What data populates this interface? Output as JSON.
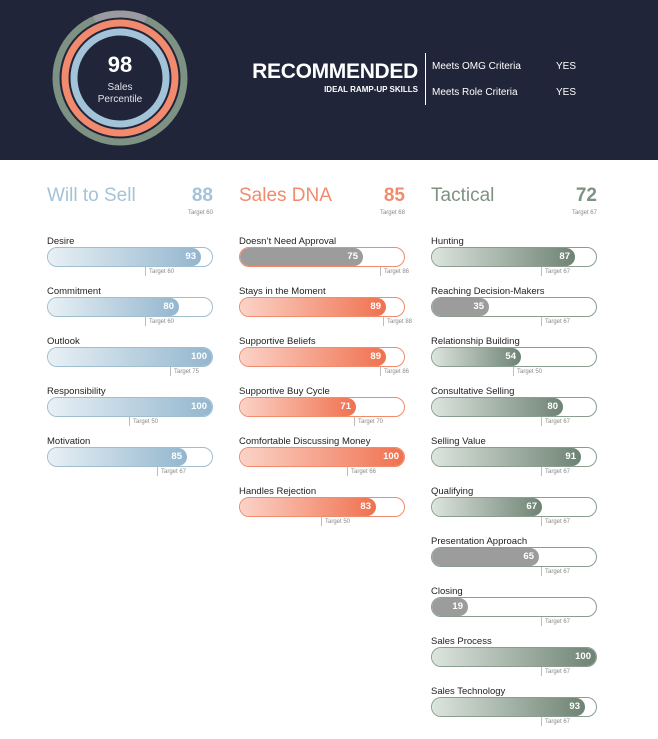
{
  "header": {
    "percentile_value": "98",
    "percentile_label_1": "Sales",
    "percentile_label_2": "Percentile",
    "recommendation": "RECOMMENDED",
    "recommendation_sub": "IDEAL RAMP-UP SKILLS",
    "criteria": [
      {
        "label": "Meets OMG Criteria",
        "value": "YES"
      },
      {
        "label": "Meets Role Criteria",
        "value": "YES"
      }
    ]
  },
  "colors": {
    "header_bg": "#202539",
    "will_to_sell": "#a3c3d8",
    "sales_dna": "#f28a6e",
    "tactical": "#7e9283",
    "below_target_gray": "#9c9c9c"
  },
  "columns": [
    {
      "key": "will",
      "title": "Will to Sell",
      "score": "88",
      "target": "Target 60",
      "items": [
        {
          "label": "Desire",
          "value": 93,
          "target": "Target 60",
          "target_value": 60,
          "below": false
        },
        {
          "label": "Commitment",
          "value": 80,
          "target": "Target 60",
          "target_value": 60,
          "below": false
        },
        {
          "label": "Outlook",
          "value": 100,
          "target": "Target 75",
          "target_value": 75,
          "below": false
        },
        {
          "label": "Responsibility",
          "value": 100,
          "target": "Target 50",
          "target_value": 50,
          "below": false
        },
        {
          "label": "Motivation",
          "value": 85,
          "target": "Target 67",
          "target_value": 67,
          "below": false
        }
      ]
    },
    {
      "key": "dna",
      "title": "Sales DNA",
      "score": "85",
      "target": "Target 68",
      "items": [
        {
          "label": "Doesn’t Need Approval",
          "value": 75,
          "target": "Target 86",
          "target_value": 86,
          "below": true
        },
        {
          "label": "Stays in the Moment",
          "value": 89,
          "target": "Target 88",
          "target_value": 88,
          "below": false
        },
        {
          "label": "Supportive Beliefs",
          "value": 89,
          "target": "Target 86",
          "target_value": 86,
          "below": false
        },
        {
          "label": "Supportive Buy Cycle",
          "value": 71,
          "target": "Target 70",
          "target_value": 70,
          "below": false
        },
        {
          "label": "Comfortable Discussing Money",
          "value": 100,
          "target": "Target 66",
          "target_value": 66,
          "below": false
        },
        {
          "label": "Handles Rejection",
          "value": 83,
          "target": "Target 50",
          "target_value": 50,
          "below": false
        }
      ]
    },
    {
      "key": "tac",
      "title": "Tactical",
      "score": "72",
      "target": "Target 67",
      "items": [
        {
          "label": "Hunting",
          "value": 87,
          "target": "Target 67",
          "target_value": 67,
          "below": false
        },
        {
          "label": "Reaching Decision-Makers",
          "value": 35,
          "target": "Target 67",
          "target_value": 67,
          "below": true
        },
        {
          "label": "Relationship Building",
          "value": 54,
          "target": "Target 50",
          "target_value": 50,
          "below": false
        },
        {
          "label": "Consultative Selling",
          "value": 80,
          "target": "Target 67",
          "target_value": 67,
          "below": false
        },
        {
          "label": "Selling Value",
          "value": 91,
          "target": "Target 67",
          "target_value": 67,
          "below": false
        },
        {
          "label": "Qualifying",
          "value": 67,
          "target": "Target 67",
          "target_value": 67,
          "below": false
        },
        {
          "label": "Presentation Approach",
          "value": 65,
          "target": "Target 67",
          "target_value": 67,
          "below": true
        },
        {
          "label": "Closing",
          "value": 19,
          "target": "Target 67",
          "target_value": 67,
          "below": true
        },
        {
          "label": "Sales Process",
          "value": 100,
          "target": "Target 67",
          "target_value": 67,
          "below": false
        },
        {
          "label": "Sales Technology",
          "value": 93,
          "target": "Target 67",
          "target_value": 67,
          "below": false
        }
      ]
    }
  ]
}
